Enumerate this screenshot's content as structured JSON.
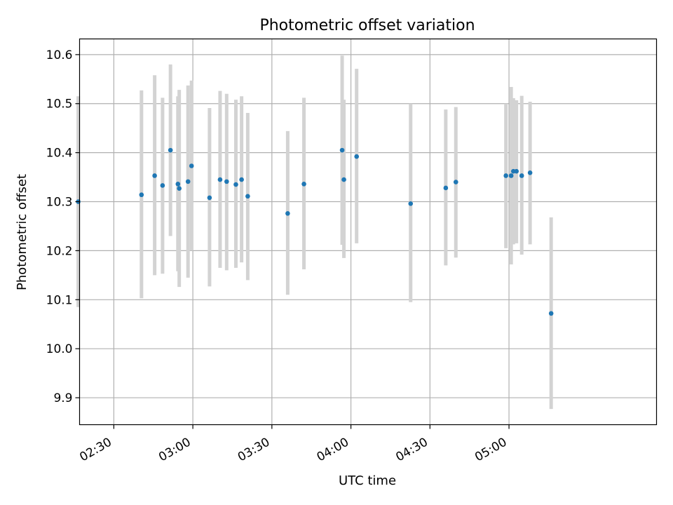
{
  "chart_data": {
    "type": "scatter",
    "title": "Photometric offset variation",
    "xlabel": "UTC time",
    "ylabel": "Photometric offset",
    "x_ticks": [
      "02:30",
      "03:00",
      "03:30",
      "04:00",
      "04:30",
      "05:00"
    ],
    "y_ticks": [
      "9.9",
      "10.0",
      "10.1",
      "10.2",
      "10.3",
      "10.4",
      "10.5",
      "10.6"
    ],
    "xlim": [
      "02:17",
      "05:56"
    ],
    "ylim": [
      9.845,
      10.632
    ],
    "grid": true,
    "colors": {
      "points": "#1f77b4",
      "errorbars": "#d3d3d3",
      "grid": "#b0b0b0"
    },
    "points": [
      {
        "x": "02:16:30",
        "y": 10.3,
        "err_low": 10.085,
        "err_high": 10.515
      },
      {
        "x": "02:40:30",
        "y": 10.314,
        "err_low": 10.103,
        "err_high": 10.527
      },
      {
        "x": "02:45:30",
        "y": 10.353,
        "err_low": 10.15,
        "err_high": 10.558
      },
      {
        "x": "02:48:30",
        "y": 10.333,
        "err_low": 10.153,
        "err_high": 10.512
      },
      {
        "x": "02:51:30",
        "y": 10.405,
        "err_low": 10.23,
        "err_high": 10.58
      },
      {
        "x": "02:54:20",
        "y": 10.336,
        "err_low": 10.158,
        "err_high": 10.515
      },
      {
        "x": "02:54:50",
        "y": 10.327,
        "err_low": 10.126,
        "err_high": 10.528
      },
      {
        "x": "02:58:10",
        "y": 10.341,
        "err_low": 10.145,
        "err_high": 10.537
      },
      {
        "x": "02:59:30",
        "y": 10.373,
        "err_low": 10.2,
        "err_high": 10.547
      },
      {
        "x": "03:06:20",
        "y": 10.308,
        "err_low": 10.127,
        "err_high": 10.491
      },
      {
        "x": "03:10:20",
        "y": 10.345,
        "err_low": 10.165,
        "err_high": 10.526
      },
      {
        "x": "03:12:50",
        "y": 10.341,
        "err_low": 10.16,
        "err_high": 10.52
      },
      {
        "x": "03:16:20",
        "y": 10.335,
        "err_low": 10.165,
        "err_high": 10.508
      },
      {
        "x": "03:18:30",
        "y": 10.345,
        "err_low": 10.176,
        "err_high": 10.515
      },
      {
        "x": "03:20:50",
        "y": 10.311,
        "err_low": 10.14,
        "err_high": 10.481
      },
      {
        "x": "03:36:00",
        "y": 10.276,
        "err_low": 10.11,
        "err_high": 10.444
      },
      {
        "x": "03:42:10",
        "y": 10.336,
        "err_low": 10.162,
        "err_high": 10.512
      },
      {
        "x": "03:56:40",
        "y": 10.405,
        "err_low": 10.212,
        "err_high": 10.598
      },
      {
        "x": "03:57:20",
        "y": 10.345,
        "err_low": 10.185,
        "err_high": 10.508
      },
      {
        "x": "04:02:10",
        "y": 10.392,
        "err_low": 10.215,
        "err_high": 10.571
      },
      {
        "x": "04:22:40",
        "y": 10.296,
        "err_low": 10.095,
        "err_high": 10.5
      },
      {
        "x": "04:36:00",
        "y": 10.328,
        "err_low": 10.17,
        "err_high": 10.488
      },
      {
        "x": "04:39:50",
        "y": 10.34,
        "err_low": 10.186,
        "err_high": 10.493
      },
      {
        "x": "04:58:50",
        "y": 10.353,
        "err_low": 10.205,
        "err_high": 10.5
      },
      {
        "x": "05:00:50",
        "y": 10.353,
        "err_low": 10.172,
        "err_high": 10.534
      },
      {
        "x": "05:01:40",
        "y": 10.362,
        "err_low": 10.213,
        "err_high": 10.511
      },
      {
        "x": "05:02:50",
        "y": 10.362,
        "err_low": 10.215,
        "err_high": 10.507
      },
      {
        "x": "05:04:50",
        "y": 10.353,
        "err_low": 10.192,
        "err_high": 10.516
      },
      {
        "x": "05:08:00",
        "y": 10.359,
        "err_low": 10.213,
        "err_high": 10.504
      },
      {
        "x": "05:16:00",
        "y": 10.072,
        "err_low": 9.877,
        "err_high": 10.268
      }
    ]
  }
}
